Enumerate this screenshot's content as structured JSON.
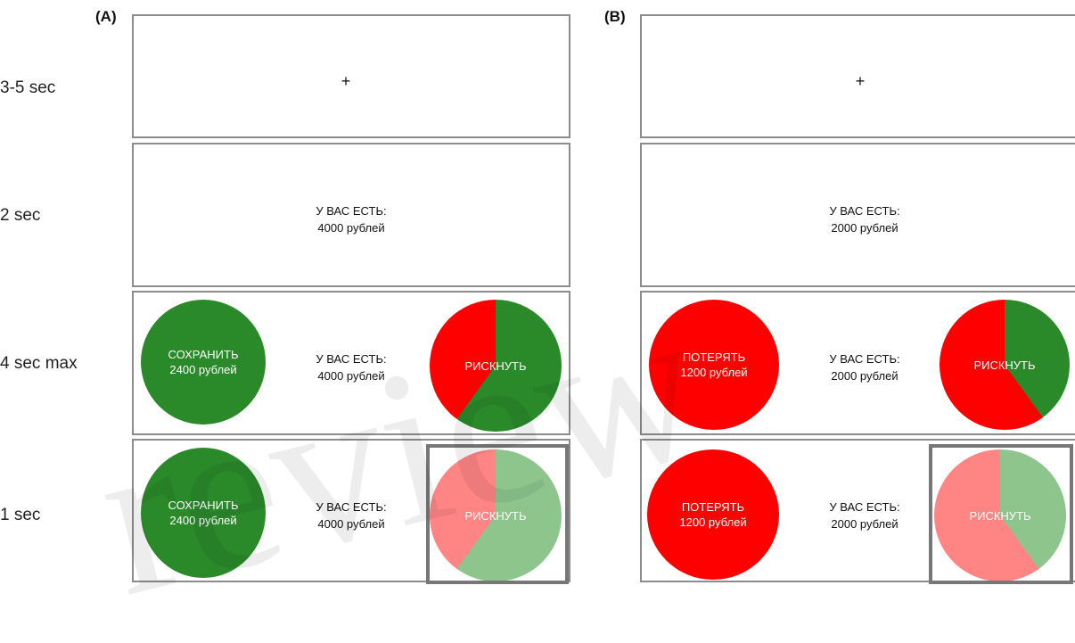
{
  "panels": [
    {
      "label": "(A)"
    },
    {
      "label": "(B)"
    }
  ],
  "rows": [
    {
      "duration": "3-5 sec"
    },
    {
      "duration": "2 sec"
    },
    {
      "duration": "4 sec max"
    },
    {
      "duration": "1 sec"
    }
  ],
  "fixation": "+",
  "stimulus": {
    "A": {
      "you_have": "У ВАС ЕСТЬ:",
      "amount": "4000 рублей",
      "sure_label": "СОХРАНИТЬ",
      "sure_amount": "2400 рублей",
      "gamble_label": "РИСКНУТЬ",
      "gamble_green_fraction": 0.6
    },
    "B": {
      "you_have": "У ВАС ЕСТЬ:",
      "amount": "2000 рублей",
      "sure_label": "ПОТЕРЯТЬ",
      "sure_amount": "1200 рублей",
      "gamble_label": "РИСКНУТЬ",
      "gamble_green_fraction": 0.4
    }
  },
  "watermark": "review",
  "colors": {
    "green": "#2a8a2a",
    "red": "#ff0000",
    "light_green": "#8dc58d",
    "light_red": "#ff8585"
  }
}
